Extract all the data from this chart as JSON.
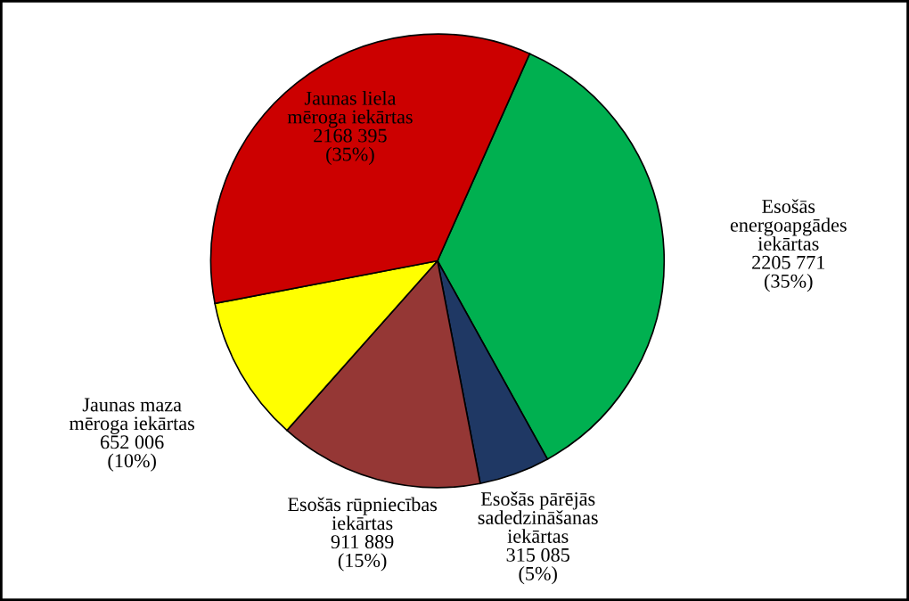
{
  "chart_data": {
    "type": "pie",
    "categories": [
      "Esošās\nenergoapgādes\niekārtas",
      "Esošās pārējās\nsadedzināšanas\niekārtas",
      "Esošās rūpniecības\niekārtas",
      "Jaunas maza\nmēroga iekārtas",
      "Jaunas liela\nmēroga iekārtas"
    ],
    "values": [
      2205771,
      315085,
      911889,
      652006,
      2168395
    ],
    "value_labels": [
      "2205 771\n(35%)",
      "315 085\n(5%)",
      "911 889\n(15%)",
      "652 006\n(10%)",
      "2168 395\n(35%)"
    ],
    "colors": [
      "#00b050",
      "#1f3864",
      "#953735",
      "#ffff00",
      "#cc0000"
    ],
    "legend": false
  }
}
